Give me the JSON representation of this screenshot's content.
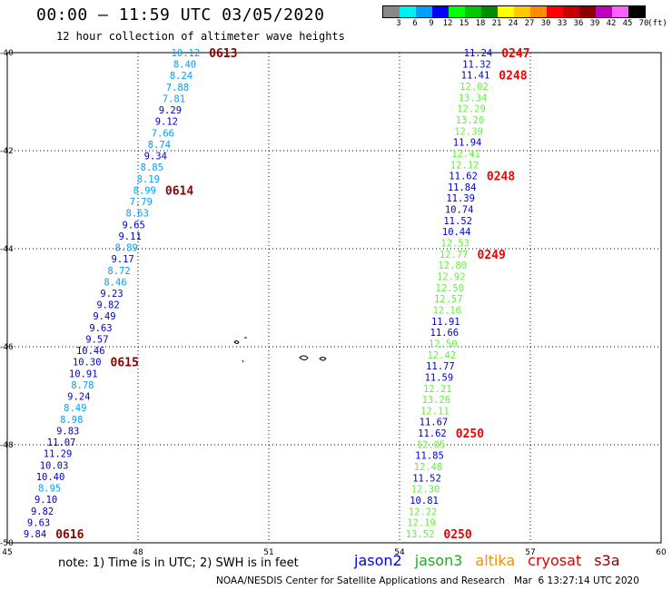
{
  "header": {
    "title": "00:00 – 11:59 UTC 03/05/2020",
    "subtitle": "12 hour collection of altimeter wave heights"
  },
  "legend": {
    "unit": "(ft)",
    "bins": [
      {
        "label": "3",
        "color": "#888888"
      },
      {
        "label": "6",
        "color": "#00f0f0"
      },
      {
        "label": "9",
        "color": "#00a0ff"
      },
      {
        "label": "12",
        "color": "#0000ff"
      },
      {
        "label": "15",
        "color": "#00ff00"
      },
      {
        "label": "18",
        "color": "#00c800"
      },
      {
        "label": "21",
        "color": "#008c00"
      },
      {
        "label": "24",
        "color": "#ffff00"
      },
      {
        "label": "27",
        "color": "#ffc800"
      },
      {
        "label": "30",
        "color": "#ff8c00"
      },
      {
        "label": "33",
        "color": "#ff0000"
      },
      {
        "label": "36",
        "color": "#c80000"
      },
      {
        "label": "39",
        "color": "#8c0000"
      },
      {
        "label": "42",
        "color": "#c000c0"
      },
      {
        "label": "45",
        "color": "#ff60ff"
      },
      {
        "label": "70",
        "color": "#000000"
      }
    ]
  },
  "map": {
    "lon_range": [
      45,
      60
    ],
    "lat_range": [
      -50,
      -40
    ],
    "lon_ticks": [
      "45",
      "48",
      "51",
      "54",
      "57",
      "60"
    ],
    "lat_ticks": [
      "-40",
      "-42",
      "-44",
      "-46",
      "-48",
      "-50"
    ]
  },
  "tracks": [
    {
      "start_lon": 49.42,
      "end_lon": 45.9,
      "values": [
        {
          "v": "10.12",
          "c": "#00a0ff"
        },
        {
          "v": "8.40",
          "c": "#00a0ff"
        },
        {
          "v": "8.24",
          "c": "#00a0ff"
        },
        {
          "v": "7.88",
          "c": "#00a0ff"
        },
        {
          "v": "7.81",
          "c": "#00a0ff"
        },
        {
          "v": "9.29",
          "c": "#0000d0"
        },
        {
          "v": "9.12",
          "c": "#0000d0"
        },
        {
          "v": "7.66",
          "c": "#00a0ff"
        },
        {
          "v": "8.74",
          "c": "#00a0ff"
        },
        {
          "v": "9.34",
          "c": "#0000d0"
        },
        {
          "v": "8.85",
          "c": "#00a0ff"
        },
        {
          "v": "8.19",
          "c": "#00a0ff"
        },
        {
          "v": "8.99",
          "c": "#00a0ff"
        },
        {
          "v": "7.79",
          "c": "#00a0ff"
        },
        {
          "v": "8.63",
          "c": "#00a0ff"
        },
        {
          "v": "9.65",
          "c": "#0000d0"
        },
        {
          "v": "9.11",
          "c": "#0000d0"
        },
        {
          "v": "8.89",
          "c": "#00a0ff"
        },
        {
          "v": "9.17",
          "c": "#0000d0"
        },
        {
          "v": "8.72",
          "c": "#00a0ff"
        },
        {
          "v": "8.46",
          "c": "#00a0ff"
        },
        {
          "v": "9.23",
          "c": "#0000d0"
        },
        {
          "v": "9.82",
          "c": "#0000d0"
        },
        {
          "v": "9.49",
          "c": "#0000d0"
        },
        {
          "v": "9.63",
          "c": "#0000d0"
        },
        {
          "v": "9.57",
          "c": "#0000d0"
        },
        {
          "v": "10.46",
          "c": "#0000d0"
        },
        {
          "v": "10.30",
          "c": "#0000d0"
        },
        {
          "v": "10.91",
          "c": "#0000d0"
        },
        {
          "v": "8.78",
          "c": "#00a0ff"
        },
        {
          "v": "9.24",
          "c": "#0000d0"
        },
        {
          "v": "8.49",
          "c": "#00a0ff"
        },
        {
          "v": "8.98",
          "c": "#00a0ff"
        },
        {
          "v": "9.83",
          "c": "#0000d0"
        },
        {
          "v": "11.07",
          "c": "#0000d0"
        },
        {
          "v": "11.29",
          "c": "#0000d0"
        },
        {
          "v": "10.03",
          "c": "#0000d0"
        },
        {
          "v": "10.40",
          "c": "#0000d0"
        },
        {
          "v": "8.95",
          "c": "#00a0ff"
        },
        {
          "v": "9.10",
          "c": "#0000d0"
        },
        {
          "v": "9.82",
          "c": "#0000d0"
        },
        {
          "v": "9.63",
          "c": "#0000d0"
        },
        {
          "v": "9.84",
          "c": "#0000d0"
        }
      ],
      "passes": [
        {
          "label": "0613",
          "color": "#8b0000",
          "at": 0
        },
        {
          "label": "0614",
          "color": "#8b0000",
          "at": 12
        },
        {
          "label": "0615",
          "color": "#8b0000",
          "at": 27
        },
        {
          "label": "0616",
          "color": "#8b0000",
          "at": 42
        }
      ]
    },
    {
      "start_lon": 56.13,
      "end_lon": 54.8,
      "values": [
        {
          "v": "11.24",
          "c": "#0000d0"
        },
        {
          "v": "11.32",
          "c": "#0000d0"
        },
        {
          "v": "11.41",
          "c": "#0000d0"
        },
        {
          "v": "12.02",
          "c": "#66ee44"
        },
        {
          "v": "13.34",
          "c": "#66ee44"
        },
        {
          "v": "12.29",
          "c": "#66ee44"
        },
        {
          "v": "13.20",
          "c": "#66ee44"
        },
        {
          "v": "12.39",
          "c": "#66ee44"
        },
        {
          "v": "11.94",
          "c": "#0000d0"
        },
        {
          "v": "12.41",
          "c": "#66ee44"
        },
        {
          "v": "12.12",
          "c": "#66ee44"
        },
        {
          "v": "11.62",
          "c": "#0000d0"
        },
        {
          "v": "11.84",
          "c": "#0000d0"
        },
        {
          "v": "11.39",
          "c": "#0000d0"
        },
        {
          "v": "10.74",
          "c": "#0000d0"
        },
        {
          "v": "11.52",
          "c": "#0000d0"
        },
        {
          "v": "10.44",
          "c": "#0000d0"
        },
        {
          "v": "12.53",
          "c": "#66ee44"
        },
        {
          "v": "12.77",
          "c": "#66ee44"
        },
        {
          "v": "12.80",
          "c": "#66ee44"
        },
        {
          "v": "12.92",
          "c": "#66ee44"
        },
        {
          "v": "12.50",
          "c": "#66ee44"
        },
        {
          "v": "12.57",
          "c": "#66ee44"
        },
        {
          "v": "12.16",
          "c": "#66ee44"
        },
        {
          "v": "11.91",
          "c": "#0000d0"
        },
        {
          "v": "11.66",
          "c": "#0000d0"
        },
        {
          "v": "12.50",
          "c": "#66ee44"
        },
        {
          "v": "12.42",
          "c": "#66ee44"
        },
        {
          "v": "11.77",
          "c": "#0000d0"
        },
        {
          "v": "11.59",
          "c": "#0000d0"
        },
        {
          "v": "12.21",
          "c": "#66ee44"
        },
        {
          "v": "13.26",
          "c": "#66ee44"
        },
        {
          "v": "12.11",
          "c": "#66ee44"
        },
        {
          "v": "11.67",
          "c": "#0000d0"
        },
        {
          "v": "11.62",
          "c": "#0000d0"
        },
        {
          "v": "12.05",
          "c": "#66ee44"
        },
        {
          "v": "11.85",
          "c": "#0000d0"
        },
        {
          "v": "12.48",
          "c": "#66ee44"
        },
        {
          "v": "11.52",
          "c": "#0000d0"
        },
        {
          "v": "12.30",
          "c": "#66ee44"
        },
        {
          "v": "10.81",
          "c": "#0000d0"
        },
        {
          "v": "12.22",
          "c": "#66ee44"
        },
        {
          "v": "12.19",
          "c": "#66ee44"
        },
        {
          "v": "13.52",
          "c": "#66ee44"
        }
      ],
      "passes": [
        {
          "label": "0247",
          "color": "#ee0000",
          "at": 0
        },
        {
          "label": "0248",
          "color": "#ee0000",
          "at": 2
        },
        {
          "label": "0248",
          "color": "#ee0000",
          "at": 11
        },
        {
          "label": "0249",
          "color": "#ee0000",
          "at": 18
        },
        {
          "label": "0250",
          "color": "#ee0000",
          "at": 34
        },
        {
          "label": "0250",
          "color": "#ee0000",
          "at": 43
        }
      ]
    }
  ],
  "footer": {
    "note": "note: 1) Time is in UTC; 2) SWH is in feet",
    "satellites": [
      {
        "name": "jason2",
        "color": "#0000dd"
      },
      {
        "name": "jason3",
        "color": "#22aa22"
      },
      {
        "name": "altika",
        "color": "#ff8c00"
      },
      {
        "name": "cryosat",
        "color": "#dd0000"
      },
      {
        "name": "s3a",
        "color": "#8b0000"
      }
    ],
    "credit": "NOAA/NESDIS Center for Satellite Applications and Research   Mar  6 13:27:14 UTC 2020"
  }
}
